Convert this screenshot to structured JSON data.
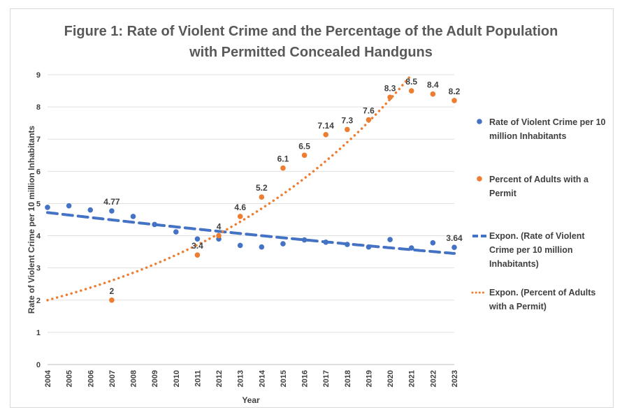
{
  "chart_data": {
    "type": "scatter",
    "title": "Figure 1: Rate of Violent Crime and the Percentage of the Adult Population with Permitted Concealed Handguns",
    "title_lines": [
      "Figure 1: Rate of Violent Crime and the Percentage of the Adult Population",
      "with Permitted Concealed Handguns"
    ],
    "xlabel": "Year",
    "ylabel": "Rate of Violent Crime per 10 million Inhabitants",
    "x": [
      2004,
      2005,
      2006,
      2007,
      2008,
      2009,
      2010,
      2011,
      2012,
      2013,
      2014,
      2015,
      2016,
      2017,
      2018,
      2019,
      2020,
      2021,
      2022,
      2023
    ],
    "ylim": [
      0,
      9
    ],
    "yticks": [
      0,
      1,
      2,
      3,
      4,
      5,
      6,
      7,
      8,
      9
    ],
    "grid": true,
    "legend": "right",
    "series": [
      {
        "name": "Rate of Violent Crime per 10 million Inhabitants",
        "color": "#4472c4",
        "x": [
          2004,
          2005,
          2006,
          2007,
          2008,
          2009,
          2010,
          2011,
          2012,
          2013,
          2014,
          2015,
          2016,
          2017,
          2018,
          2019,
          2020,
          2021,
          2022,
          2023
        ],
        "values": [
          4.88,
          4.93,
          4.8,
          4.77,
          4.6,
          4.35,
          4.12,
          3.9,
          3.9,
          3.7,
          3.65,
          3.75,
          3.87,
          3.8,
          3.73,
          3.65,
          3.88,
          3.62,
          3.78,
          3.64
        ],
        "data_labels": {
          "2007": "4.77",
          "2023": "3.64"
        }
      },
      {
        "name": "Percent of Adults with a Permit",
        "color": "#ed7d31",
        "x": [
          2007,
          2011,
          2012,
          2013,
          2014,
          2015,
          2016,
          2017,
          2018,
          2019,
          2020,
          2021,
          2022,
          2023
        ],
        "values": [
          2,
          3.4,
          4,
          4.6,
          5.2,
          6.1,
          6.5,
          7.14,
          7.3,
          7.6,
          8.3,
          8.5,
          8.4,
          8.2
        ],
        "data_labels": [
          "2",
          "3.4",
          "4",
          "4.6",
          "5.2",
          "6.1",
          "6.5",
          "7.14",
          "7.3",
          "7.6",
          "8.3",
          "8.5",
          "8.4",
          "8.2"
        ]
      }
    ],
    "trendlines": [
      {
        "name": "Expon. (Rate of Violent Crime per 10 million Inhabitants)",
        "color": "#4472c4",
        "style": "dashed",
        "start": [
          2004,
          4.72
        ],
        "end": [
          2023,
          3.45
        ]
      },
      {
        "name": "Expon. (Percent of Adults with a Permit)",
        "color": "#ed7d31",
        "style": "dotted",
        "start": [
          2004,
          2.0
        ],
        "end": [
          2021,
          9.0
        ]
      }
    ]
  }
}
